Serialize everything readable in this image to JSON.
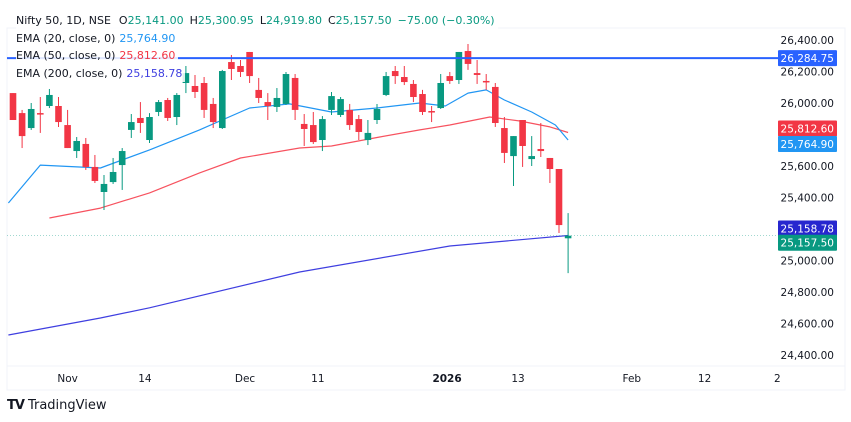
{
  "header": {
    "symbol": "Nifty 50, 1D, NSE",
    "open_label": "O",
    "open": "25,141.00",
    "high_label": "H",
    "high": "25,300.95",
    "low_label": "L",
    "low": "24,919.80",
    "close_label": "C",
    "close": "25,157.50",
    "change": "−75.00 (−0.30%)"
  },
  "indicators": [
    {
      "label": "EMA (20, close, 0)",
      "value": "25,764.90",
      "color": "#2196f3"
    },
    {
      "label": "EMA (50, close, 0)",
      "value": "25,812.60",
      "color": "#f23645"
    },
    {
      "label": "EMA (200, close, 0)",
      "value": "25,158.78",
      "color": "#3f3fe0"
    }
  ],
  "colors": {
    "up": "#089981",
    "down": "#f23645",
    "hline": "#2962ff",
    "ema200_badge": "#2727cf"
  },
  "price_axis": {
    "ticks": [
      "26,400.00",
      "26,200.00",
      "26,000.00",
      "25,600.00",
      "25,400.00",
      "25,000.00",
      "24,800.00",
      "24,600.00",
      "24,400.00"
    ],
    "tick_values": [
      26400,
      26200,
      26000,
      25600,
      25400,
      25000,
      24800,
      24600,
      24400
    ],
    "badges": [
      {
        "text": "26,284.75",
        "value": 26284.75,
        "color": "#2962ff"
      },
      {
        "text": "25,812.60",
        "value": 25812.6,
        "color": "#f23645"
      },
      {
        "text": "25,764.90",
        "value": 25764.9,
        "color": "#2196f3"
      },
      {
        "text": "25,158.78",
        "value": 25158.78,
        "color": "#2727cf"
      },
      {
        "text": "25,157.50",
        "value": 25157.5,
        "color": "#089981"
      }
    ]
  },
  "time_axis": {
    "labels": [
      "Nov",
      "14",
      "Dec",
      "11",
      "2026",
      "13",
      "Feb",
      "12",
      "2"
    ],
    "bar_index": [
      6,
      14.5,
      25.5,
      33.5,
      47.7,
      55.5,
      68,
      76,
      84
    ]
  },
  "horizontal_line": 26284.75,
  "last_close_line": 25157.5,
  "chart_data": {
    "type": "candlestick",
    "title": "Nifty 50, 1D, NSE",
    "ylim": [
      24300,
      26480
    ],
    "ohlc": [
      [
        26063,
        26063,
        25892,
        25892
      ],
      [
        25936,
        25956,
        25714,
        25790
      ],
      [
        25841,
        26000,
        25829,
        25962
      ],
      [
        25936,
        26038,
        25810,
        25930
      ],
      [
        25981,
        26089,
        25968,
        26051
      ],
      [
        25981,
        26038,
        25848,
        25879
      ],
      [
        25860,
        25956,
        25714,
        25714
      ],
      [
        25695,
        25784,
        25651,
        25759
      ],
      [
        25740,
        25778,
        25575,
        25594
      ],
      [
        25594,
        25670,
        25492,
        25505
      ],
      [
        25435,
        25543,
        25321,
        25486
      ],
      [
        25498,
        25651,
        25486,
        25562
      ],
      [
        25606,
        25714,
        25448,
        25695
      ],
      [
        25829,
        25930,
        25778,
        25879
      ],
      [
        25905,
        26006,
        25810,
        25873
      ],
      [
        25765,
        25936,
        25746,
        25911
      ],
      [
        25943,
        26019,
        25917,
        26006
      ],
      [
        26019,
        26032,
        25886,
        25905
      ],
      [
        25911,
        26063,
        25860,
        26051
      ],
      [
        26127,
        26235,
        26063,
        26190
      ],
      [
        26108,
        26178,
        26032,
        26070
      ],
      [
        26127,
        26165,
        25905,
        25956
      ],
      [
        25994,
        26032,
        25841,
        25879
      ],
      [
        25841,
        26210,
        25835,
        26203
      ],
      [
        26260,
        26305,
        26146,
        26216
      ],
      [
        26235,
        26273,
        26165,
        26197
      ],
      [
        26324,
        26324,
        26127,
        26171
      ],
      [
        26083,
        26159,
        26000,
        26032
      ],
      [
        26006,
        26063,
        25892,
        25981
      ],
      [
        25975,
        26095,
        25943,
        26032
      ],
      [
        25994,
        26197,
        25987,
        26184
      ],
      [
        26159,
        26184,
        25892,
        25956
      ],
      [
        25867,
        25930,
        25727,
        25835
      ],
      [
        25860,
        25943,
        25740,
        25752
      ],
      [
        25765,
        25917,
        25695,
        25898
      ],
      [
        25956,
        26070,
        25924,
        26044
      ],
      [
        25924,
        26038,
        25911,
        26025
      ],
      [
        25956,
        25994,
        25829,
        25860
      ],
      [
        25898,
        25924,
        25765,
        25816
      ],
      [
        25765,
        25892,
        25733,
        25810
      ],
      [
        25892,
        25994,
        25867,
        25962
      ],
      [
        26051,
        26197,
        26044,
        26171
      ],
      [
        26203,
        26235,
        26121,
        26171
      ],
      [
        26165,
        26235,
        26114,
        26133
      ],
      [
        26121,
        26146,
        26006,
        26038
      ],
      [
        26057,
        26083,
        25924,
        25943
      ],
      [
        25949,
        25981,
        25879,
        25943
      ],
      [
        25968,
        26184,
        25962,
        26127
      ],
      [
        26171,
        26197,
        26121,
        26140
      ],
      [
        26146,
        26324,
        26121,
        26324
      ],
      [
        26330,
        26375,
        26210,
        26248
      ],
      [
        26190,
        26273,
        26121,
        26178
      ],
      [
        26140,
        26184,
        26083,
        26137
      ],
      [
        26102,
        26127,
        25848,
        25873
      ],
      [
        25841,
        25911,
        25619,
        25683
      ],
      [
        25663,
        25790,
        25473,
        25790
      ],
      [
        25892,
        25892,
        25594,
        25727
      ],
      [
        25644,
        25790,
        25600,
        25663
      ],
      [
        25708,
        25873,
        25657,
        25695
      ],
      [
        25651,
        25651,
        25492,
        25581
      ],
      [
        25581,
        25581,
        25175,
        25225
      ],
      [
        25141,
        25300.95,
        24919.8,
        25157.5
      ]
    ],
    "ema20": [
      [
        -0.5,
        25365
      ],
      [
        3,
        25606
      ],
      [
        9.6,
        25587
      ],
      [
        15,
        25702
      ],
      [
        20.5,
        25829
      ],
      [
        26,
        25968
      ],
      [
        30.4,
        25994
      ],
      [
        35,
        25943
      ],
      [
        40,
        25968
      ],
      [
        44.7,
        26000
      ],
      [
        47.5,
        25981
      ],
      [
        50,
        26063
      ],
      [
        52,
        26083
      ],
      [
        54,
        26019
      ],
      [
        57,
        25943
      ],
      [
        59.6,
        25860
      ],
      [
        61,
        25765
      ]
    ],
    "ema50": [
      [
        4,
        25270
      ],
      [
        9.6,
        25333
      ],
      [
        15,
        25429
      ],
      [
        20.5,
        25556
      ],
      [
        25,
        25651
      ],
      [
        31.5,
        25714
      ],
      [
        35,
        25727
      ],
      [
        40.3,
        25784
      ],
      [
        44.7,
        25829
      ],
      [
        48,
        25860
      ],
      [
        52.4,
        25911
      ],
      [
        55.7,
        25886
      ],
      [
        59,
        25848
      ],
      [
        61,
        25812.6
      ]
    ],
    "ema200": [
      [
        -0.5,
        24527
      ],
      [
        9.6,
        24635
      ],
      [
        15,
        24700
      ],
      [
        31.5,
        24927
      ],
      [
        48,
        25092
      ],
      [
        61,
        25158.78
      ]
    ]
  },
  "branding": {
    "name": "TradingView",
    "mark": "TV"
  }
}
